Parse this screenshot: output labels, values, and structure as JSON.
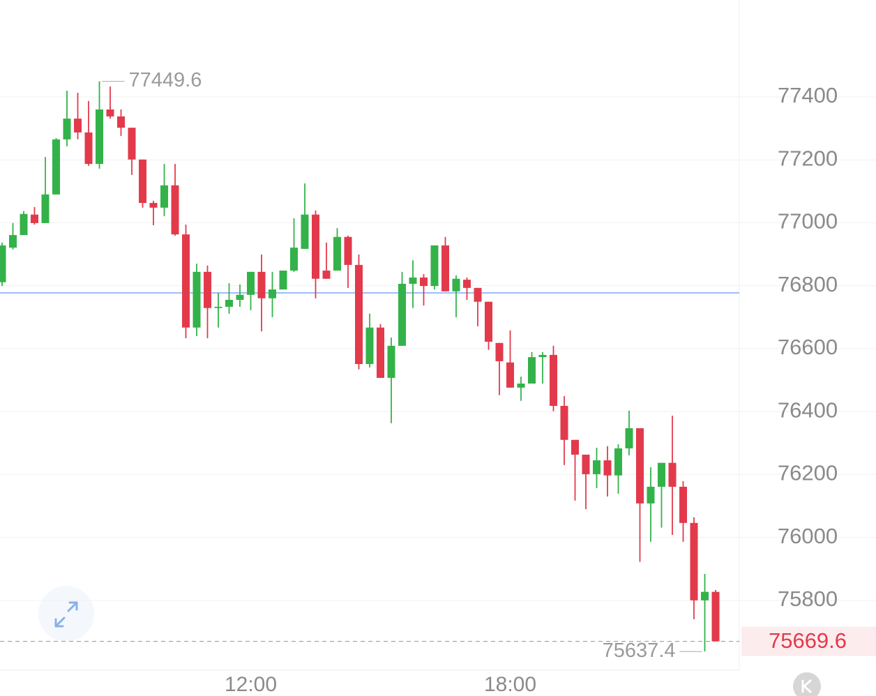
{
  "chart_data": {
    "type": "candlestick",
    "categories": [
      null,
      null,
      null,
      null,
      null,
      null,
      null,
      null,
      null,
      null,
      null,
      null,
      null,
      null,
      null,
      null,
      null,
      null,
      null,
      null,
      null,
      null,
      null,
      "12:00",
      null,
      null,
      null,
      null,
      null,
      null,
      null,
      null,
      null,
      null,
      null,
      null,
      null,
      null,
      null,
      null,
      null,
      null,
      null,
      null,
      null,
      null,
      null,
      "18:00",
      null,
      null,
      null,
      null,
      null,
      null,
      null,
      null,
      null,
      null,
      null,
      null,
      null,
      null,
      null,
      null,
      null,
      null,
      null
    ],
    "open": [
      76811,
      76921,
      76961,
      77026,
      76999,
      77090,
      77265,
      77331,
      77287,
      77187,
      77360,
      77338,
      77302,
      77201,
      77063,
      77048,
      77119,
      76963,
      76667,
      76844,
      76729,
      76733,
      76755,
      76771,
      76844,
      76760,
      76788,
      76848,
      76917,
      77026,
      76848,
      76848,
      76955,
      76866,
      76551,
      76667,
      76507,
      76609,
      76806,
      76826,
      76799,
      76928,
      76782,
      76819,
      76793,
      76749,
      76618,
      76556,
      76476,
      76489,
      76573,
      76580,
      76418,
      76310,
      76263,
      76201,
      76245,
      76197,
      76283,
      76347,
      76108,
      76161,
      76237,
      76161,
      76046,
      75800,
      75827
    ],
    "high": [
      76937,
      76999,
      77037,
      77050,
      77209,
      77269,
      77420,
      77413,
      77387,
      77449.6,
      77433,
      77360,
      77302,
      77201,
      77070,
      77187,
      77187,
      76994,
      76870,
      76864,
      76777,
      76808,
      76804,
      76844,
      76899,
      76844,
      76848,
      77014,
      77125,
      77039,
      76937,
      76983,
      76959,
      76899,
      76711,
      76678,
      76635,
      76844,
      76881,
      76837,
      76928,
      76955,
      76833,
      76826,
      76793,
      76749,
      76618,
      76658,
      76511,
      76589,
      76589,
      76609,
      76449,
      76310,
      76263,
      76285,
      76290,
      76296,
      76403,
      76347,
      76223,
      76237,
      76387,
      76179,
      76064,
      75884,
      75833
    ],
    "low": [
      76799,
      76915,
      76961,
      76994,
      76999,
      77090,
      77243,
      77265,
      77181,
      77172,
      77331,
      77276,
      77152,
      77048,
      76992,
      77021,
      76959,
      76633,
      76640,
      76633,
      76667,
      76711,
      76733,
      76722,
      76655,
      76700,
      76788,
      76844,
      76917,
      76760,
      76822,
      76848,
      76793,
      76534,
      76540,
      76507,
      76363,
      76609,
      76729,
      76737,
      76788,
      76782,
      76700,
      76755,
      76671,
      76596,
      76452,
      76476,
      76434,
      76489,
      76489,
      76401,
      76230,
      76117,
      76090,
      76157,
      76130,
      76139,
      76261,
      75922,
      75986,
      76031,
      76008,
      75986,
      75740,
      75637.4,
      75669.6
    ],
    "close": [
      76928,
      76961,
      77028,
      76999,
      77090,
      77265,
      77331,
      77287,
      77187,
      77360,
      77338,
      77302,
      77201,
      77063,
      77048,
      77119,
      76963,
      76667,
      76844,
      76729,
      76733,
      76755,
      76771,
      76844,
      76760,
      76788,
      76848,
      76921,
      77026,
      76822,
      76822,
      76955,
      76866,
      76551,
      76667,
      76507,
      76609,
      76806,
      76826,
      76799,
      76928,
      76782,
      76822,
      76793,
      76749,
      76622,
      76560,
      76476,
      76489,
      76573,
      76580,
      76418,
      76310,
      76263,
      76201,
      76245,
      76197,
      76283,
      76347,
      76108,
      76161,
      76237,
      76161,
      76046,
      75800,
      75827,
      75669.6
    ],
    "up_color": "#33b24a",
    "down_color": "#e23a4b",
    "price_line": 76777,
    "price_line_color": "#7fa9f2",
    "ylim": [
      75578,
      77708
    ],
    "yticks": [
      75800,
      76000,
      76200,
      76400,
      76600,
      76800,
      77000,
      77200,
      77400
    ],
    "grid": true
  }
}
